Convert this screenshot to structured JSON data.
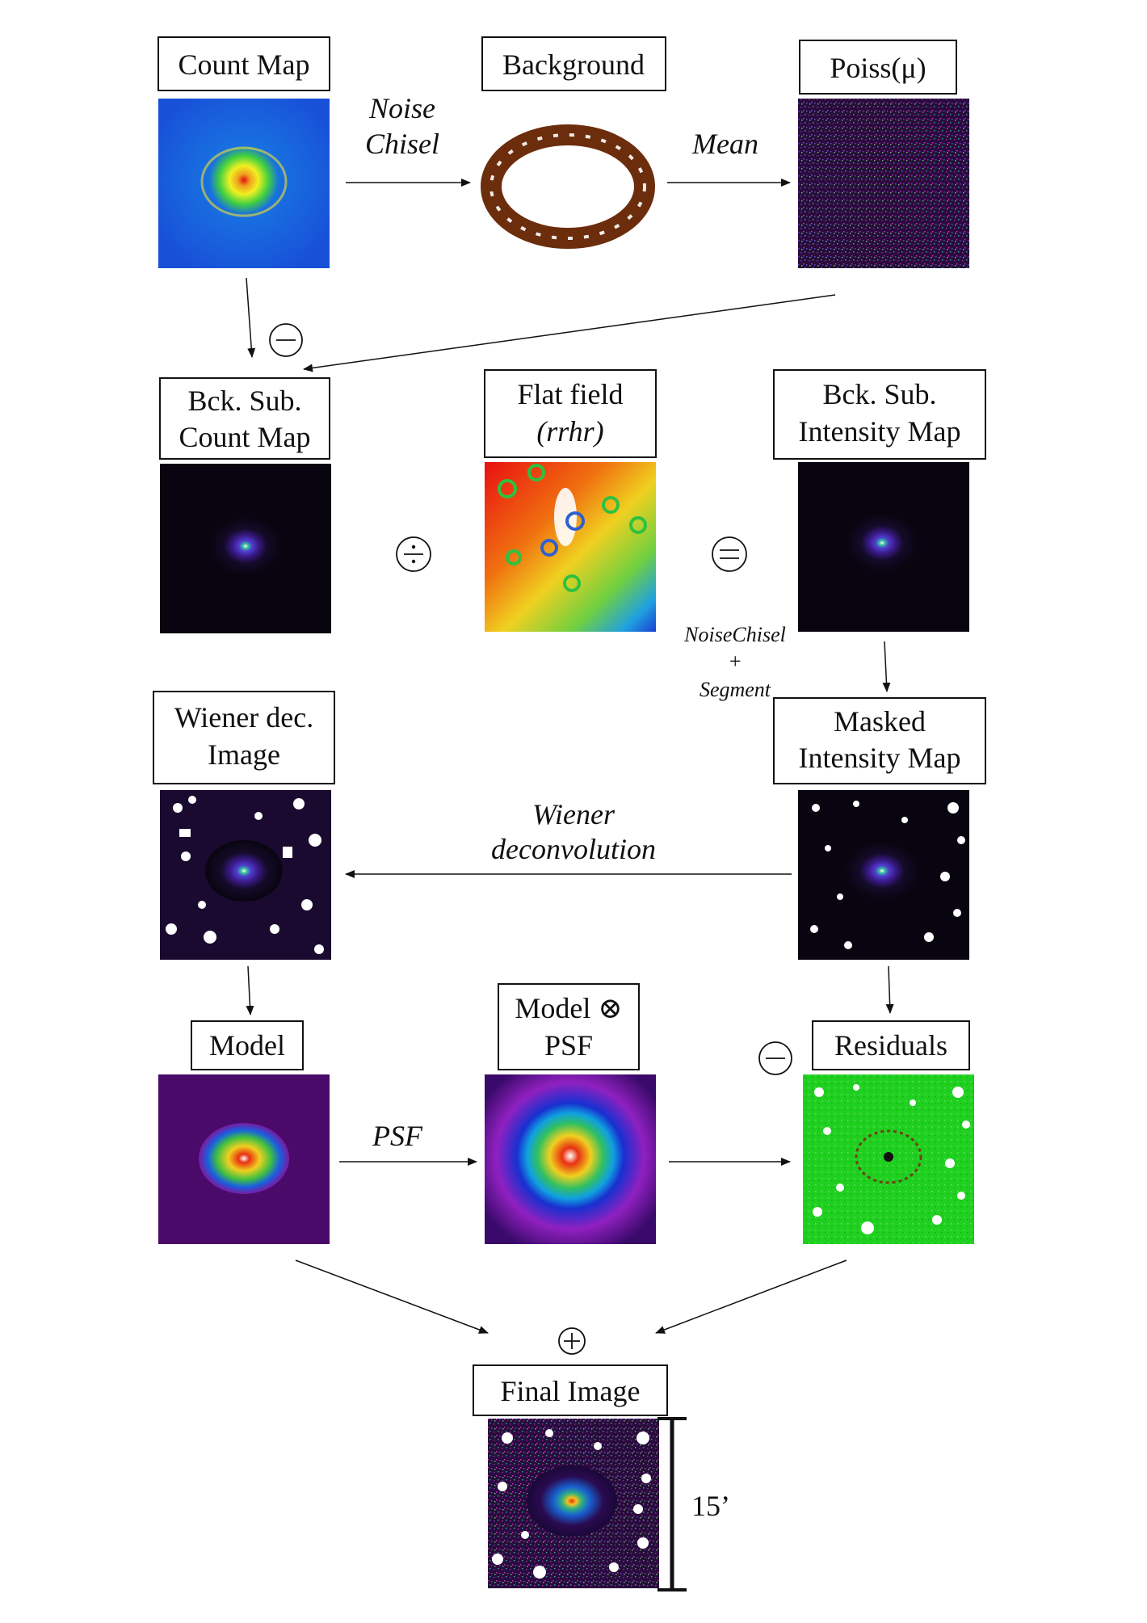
{
  "nodes": {
    "count_map": {
      "label": [
        "Count Map"
      ]
    },
    "background": {
      "label": [
        "Background"
      ]
    },
    "poiss": {
      "label": [
        "Poiss(μ)"
      ]
    },
    "bck_sub_count": {
      "label": [
        "Bck. Sub.",
        "Count Map"
      ]
    },
    "flat_field": {
      "label": [
        "Flat field",
        "(rrhr)"
      ]
    },
    "bck_sub_intensity": {
      "label": [
        "Bck. Sub.",
        "Intensity Map"
      ]
    },
    "wiener_image": {
      "label": [
        "Wiener dec.",
        "Image"
      ]
    },
    "masked_intensity": {
      "label": [
        "Masked",
        "Intensity Map"
      ]
    },
    "model": {
      "label": [
        "Model"
      ]
    },
    "model_psf": {
      "label": [
        "Model ⊗",
        "PSF"
      ]
    },
    "residuals": {
      "label": [
        "Residuals"
      ]
    },
    "final_image": {
      "label": [
        "Final Image"
      ]
    }
  },
  "edges": {
    "noise_chisel": [
      "Noise",
      "Chisel"
    ],
    "mean": "Mean",
    "noisechisel_segment": [
      "NoiseChisel",
      "+",
      "Segment"
    ],
    "wiener_deconvolution": [
      "Wiener",
      "deconvolution"
    ],
    "psf": "PSF"
  },
  "operators": {
    "minus": "⊖",
    "divide": "⨸",
    "equals": "⊜",
    "minus_residuals": "⊖",
    "plus": "⊕"
  },
  "scale_bar": "15’",
  "colors": {
    "background_ring": "#6b2d0c",
    "line": "#111111"
  }
}
